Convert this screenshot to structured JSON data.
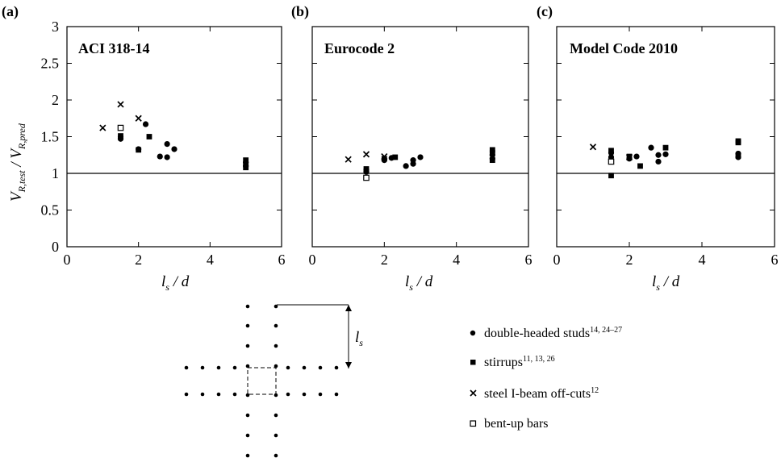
{
  "chart_data": [
    {
      "type": "scatter",
      "panel_label": "(a)",
      "title": "ACI 318-14",
      "xlabel": {
        "main": "l",
        "sub": "s",
        "rest": " / d"
      },
      "ylabel": {
        "main1": "V",
        "sub1": "R,test",
        "sep": " / ",
        "main2": "V",
        "sub2": "R,pred"
      },
      "xlim": [
        0,
        6
      ],
      "ylim": [
        0,
        3
      ],
      "xticks": [
        "0",
        "2",
        "4",
        "6"
      ],
      "yticks": [
        "0",
        "0.5",
        "1",
        "1.5",
        "2",
        "2.5",
        "3"
      ],
      "reference_line_y": 1,
      "series": [
        {
          "marker": "dot",
          "points": [
            [
              1.5,
              1.5
            ],
            [
              1.5,
              1.47
            ],
            [
              2.0,
              1.33
            ],
            [
              2.2,
              1.67
            ],
            [
              2.6,
              1.23
            ],
            [
              2.8,
              1.4
            ],
            [
              2.8,
              1.22
            ],
            [
              3.0,
              1.33
            ],
            [
              5.0,
              1.15
            ],
            [
              5.0,
              1.1
            ]
          ]
        },
        {
          "marker": "square-filled",
          "points": [
            [
              1.5,
              1.51
            ],
            [
              2.0,
              1.32
            ],
            [
              2.3,
              1.5
            ],
            [
              5.0,
              1.18
            ],
            [
              5.0,
              1.12
            ],
            [
              5.0,
              1.08
            ]
          ]
        },
        {
          "marker": "cross",
          "points": [
            [
              1.0,
              1.62
            ],
            [
              1.5,
              1.94
            ],
            [
              2.0,
              1.75
            ]
          ]
        },
        {
          "marker": "square-open",
          "points": [
            [
              1.5,
              1.62
            ]
          ]
        }
      ]
    },
    {
      "type": "scatter",
      "panel_label": "(b)",
      "title": "Eurocode 2",
      "xlabel": {
        "main": "l",
        "sub": "s",
        "rest": " / d"
      },
      "xlim": [
        0,
        6
      ],
      "ylim": [
        0,
        3
      ],
      "xticks": [
        "0",
        "2",
        "4",
        "6"
      ],
      "reference_line_y": 1,
      "series": [
        {
          "marker": "dot",
          "points": [
            [
              1.5,
              1.05
            ],
            [
              1.5,
              1.02
            ],
            [
              2.0,
              1.18
            ],
            [
              2.2,
              1.21
            ],
            [
              2.6,
              1.1
            ],
            [
              2.8,
              1.18
            ],
            [
              2.8,
              1.13
            ],
            [
              3.0,
              1.22
            ],
            [
              5.0,
              1.25
            ],
            [
              5.0,
              1.2
            ]
          ]
        },
        {
          "marker": "square-filled",
          "points": [
            [
              1.5,
              1.06
            ],
            [
              2.0,
              1.2
            ],
            [
              2.3,
              1.22
            ],
            [
              5.0,
              1.32
            ],
            [
              5.0,
              1.28
            ],
            [
              5.0,
              1.18
            ]
          ]
        },
        {
          "marker": "cross",
          "points": [
            [
              1.0,
              1.19
            ],
            [
              1.5,
              1.26
            ],
            [
              2.0,
              1.23
            ]
          ]
        },
        {
          "marker": "square-open",
          "points": [
            [
              1.5,
              0.94
            ]
          ]
        }
      ]
    },
    {
      "type": "scatter",
      "panel_label": "(c)",
      "title": "Model Code 2010",
      "xlabel": {
        "main": "l",
        "sub": "s",
        "rest": " / d"
      },
      "xlim": [
        0,
        6
      ],
      "ylim": [
        0,
        3
      ],
      "xticks": [
        "0",
        "2",
        "4",
        "6"
      ],
      "reference_line_y": 1,
      "series": [
        {
          "marker": "dot",
          "points": [
            [
              1.5,
              1.28
            ],
            [
              1.5,
              1.22
            ],
            [
              2.0,
              1.2
            ],
            [
              2.2,
              1.23
            ],
            [
              2.6,
              1.35
            ],
            [
              2.8,
              1.25
            ],
            [
              2.8,
              1.16
            ],
            [
              3.0,
              1.26
            ],
            [
              5.0,
              1.27
            ],
            [
              5.0,
              1.22
            ]
          ]
        },
        {
          "marker": "square-filled",
          "points": [
            [
              1.5,
              0.97
            ],
            [
              1.5,
              1.31
            ],
            [
              2.0,
              1.23
            ],
            [
              2.3,
              1.1
            ],
            [
              3.0,
              1.35
            ],
            [
              5.0,
              1.44
            ],
            [
              5.0,
              1.42
            ],
            [
              5.0,
              1.24
            ]
          ]
        },
        {
          "marker": "cross",
          "points": [
            [
              1.0,
              1.36
            ],
            [
              2.0,
              1.22
            ]
          ]
        },
        {
          "marker": "square-open",
          "points": [
            [
              1.5,
              1.16
            ]
          ]
        }
      ]
    }
  ],
  "schematic": {
    "dimension_label": {
      "main": "l",
      "sub": "s"
    }
  },
  "legend": [
    {
      "marker": "dot",
      "label": "double-headed studs",
      "refs": "14, 24–27"
    },
    {
      "marker": "square-filled",
      "label": "stirrups",
      "refs": "11, 13, 26"
    },
    {
      "marker": "cross",
      "label": "steel I-beam off-cuts",
      "refs": "12"
    },
    {
      "marker": "square-open",
      "label": "bent-up bars",
      "refs": ""
    }
  ]
}
